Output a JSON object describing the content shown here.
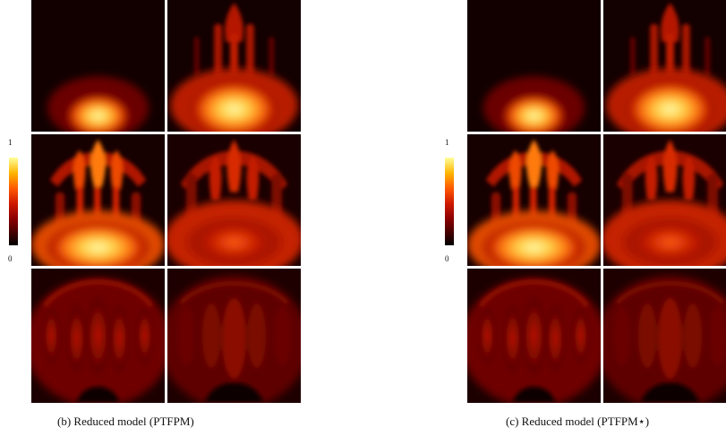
{
  "colorbar": {
    "max_label": "1",
    "min_label": "0"
  },
  "panels": [
    {
      "caption": "(b) Reduced model (PTFPM)"
    },
    {
      "caption": "(c) Reduced model (PTFPM⋆)"
    }
  ]
}
